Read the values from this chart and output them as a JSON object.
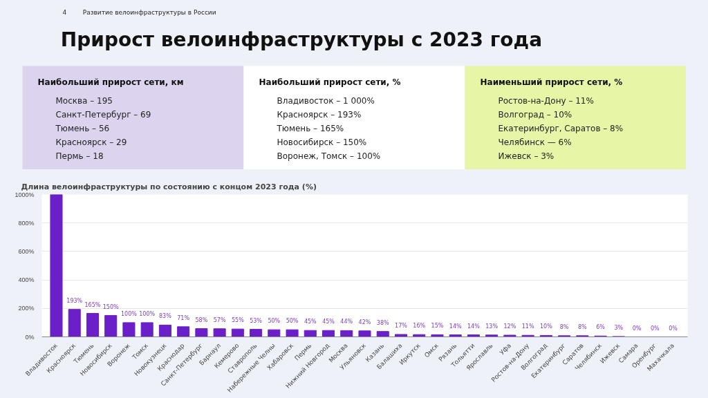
{
  "chart_data": [
    {
      "type": "other",
      "title": "Прирост велоинфраструктуры с 2023 года",
      "annotations": [
        "4",
        "Развитие велоинфраструктуры в России"
      ]
    },
    {
      "type": "other",
      "color": "#dcd3ef",
      "title": "Наибольший прирост сети, км",
      "annotations": [
        "Москва – 195",
        "Санкт-Петербург – 69",
        "Тюмень – 56",
        "Красноярск – 29",
        "Пермь – 18"
      ]
    },
    {
      "type": "other",
      "color": "#ffffff",
      "title": "Наибольший прирост сети, %",
      "annotations": [
        "Владивосток – 1 000%",
        "Красноярск – 193%",
        "Тюмень – 165%",
        "Новосибирск – 150%",
        "Воронеж, Томск – 100%"
      ]
    },
    {
      "type": "other",
      "color": "#e6f5a6",
      "title": "Наименьший прирост сети, %",
      "annotations": [
        "Ростов-на-Дону – 11%",
        "Волгоград – 10%",
        "Екатеринбург, Саратов – 8%",
        "Челябинск — 6%",
        "Ижевск – 3%"
      ]
    },
    {
      "type": "bar",
      "title": "Длина велоинфраструктуры по состоянию с концом 2023 года (%)",
      "color": "#6a1fc9",
      "grid": "y",
      "categories": [
        "Владивосток",
        "Красноярск",
        "Тюмень",
        "Новосибирск",
        "Воронеж",
        "Томск",
        "Новокузнецк",
        "Краснодар",
        "Санкт-Петербург",
        "Барнаул",
        "Кемерово",
        "Ставрополь",
        "Набережные Челны",
        "Хабаровск",
        "Пермь",
        "Нижний Новгород",
        "Москва",
        "Ульяновск",
        "Казань",
        "Балашиха",
        "Иркутск",
        "Омск",
        "Рязань",
        "Тольятти",
        "Ярославль",
        "Уфа",
        "Ростов-на-Дону",
        "Волгоград",
        "Екатеринбург",
        "Саратов",
        "Челябинск",
        "Ижевск",
        "Самара",
        "Оренбург",
        "Махачкала"
      ],
      "values": [
        1000,
        193,
        165,
        150,
        100,
        100,
        83,
        71,
        58,
        57,
        55,
        53,
        50,
        50,
        45,
        45,
        44,
        42,
        38,
        17,
        16,
        15,
        14,
        14,
        13,
        12,
        11,
        10,
        8,
        8,
        6,
        3,
        0,
        0,
        0
      ],
      "value_labels": [
        null,
        "193%",
        "165%",
        "150%",
        "100%",
        "100%",
        "83%",
        "71%",
        "58%",
        "57%",
        "55%",
        "53%",
        "50%",
        "50%",
        "45%",
        "45%",
        "44%",
        "42%",
        "38%",
        "17%",
        "16%",
        "15%",
        "14%",
        "14%",
        "13%",
        "12%",
        "11%",
        "10%",
        "8%",
        "8%",
        "6%",
        "3%",
        "0%",
        "0%",
        "0%"
      ],
      "ylim": [
        0,
        1000
      ],
      "yticks": [
        {
          "value": 0,
          "label": "0%"
        },
        {
          "value": 200,
          "label": "200%"
        },
        {
          "value": 400,
          "label": "400%"
        },
        {
          "value": 600,
          "label": "600%"
        },
        {
          "value": 800,
          "label": "800%"
        },
        {
          "value": 1000,
          "label": "1000%"
        }
      ]
    }
  ]
}
